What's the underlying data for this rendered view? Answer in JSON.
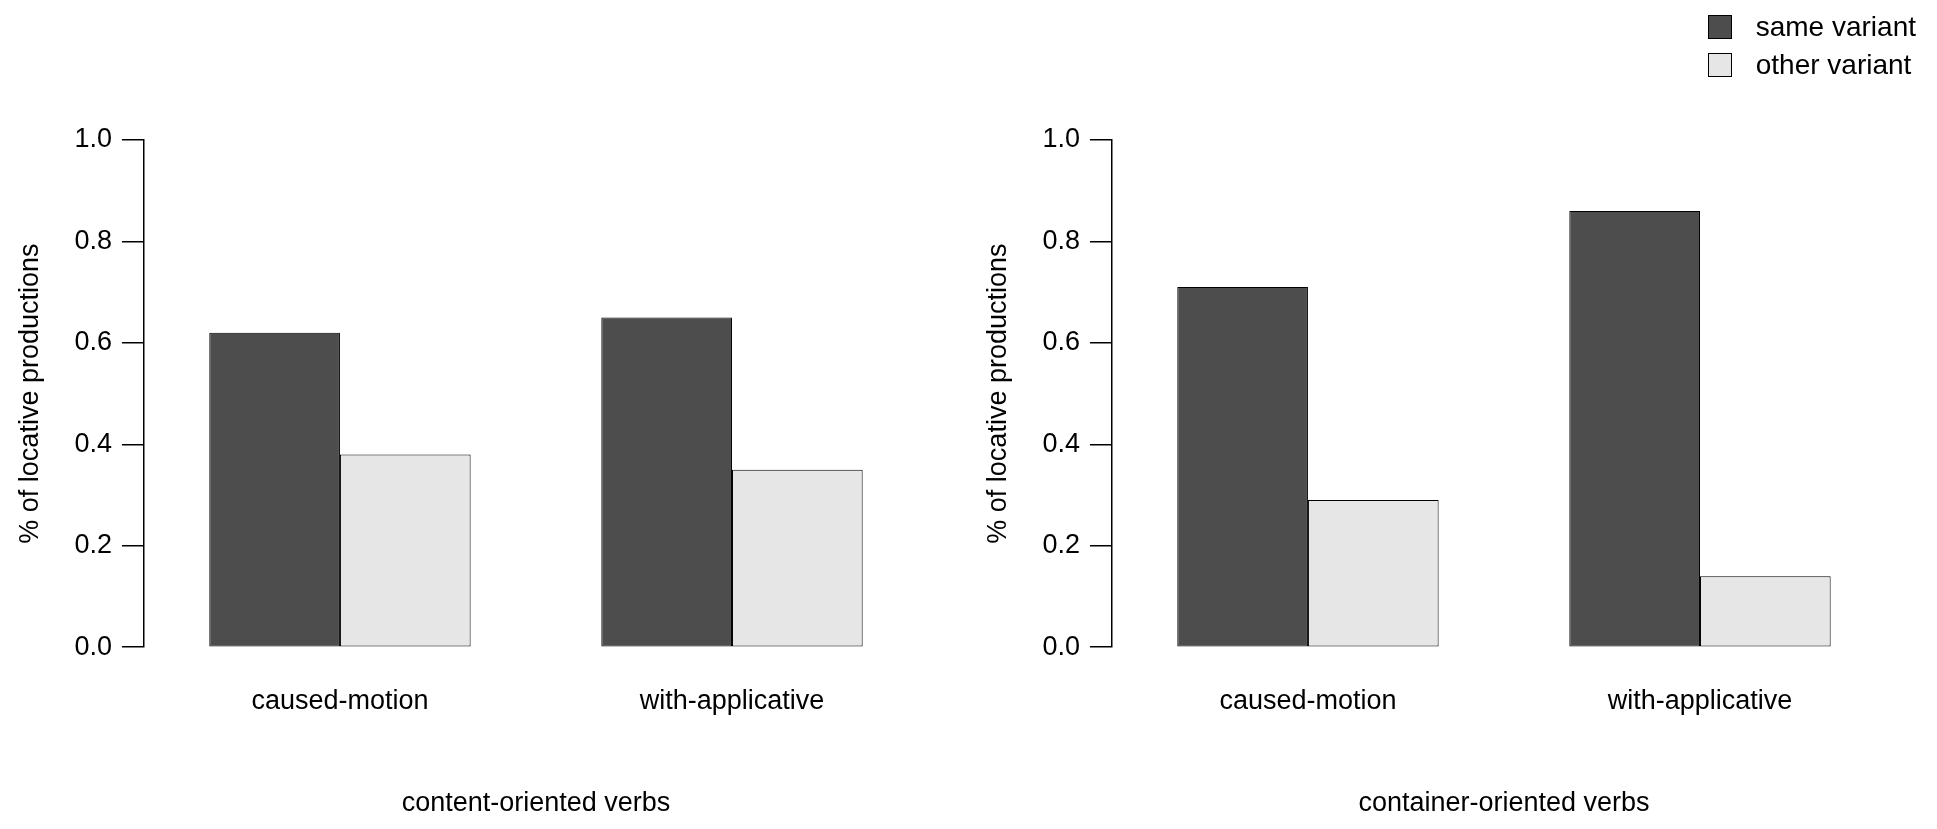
{
  "chart_data": [
    {
      "type": "bar",
      "xlabel": "content-oriented verbs",
      "ylabel": "% of locative productions",
      "categories": [
        "caused-motion",
        "with-applicative"
      ],
      "series": [
        {
          "color": "#4d4d4d",
          "values": [
            0.62,
            0.65
          ]
        },
        {
          "color": "#e6e6e6",
          "values": [
            0.38,
            0.35
          ]
        }
      ],
      "ylim": [
        0,
        1
      ],
      "yticks": [
        {
          "value": 0,
          "label": "0.0"
        },
        {
          "value": 0.2,
          "label": "0.2"
        },
        {
          "value": 0.4,
          "label": "0.4"
        },
        {
          "value": 0.6,
          "label": "0.6"
        },
        {
          "value": 0.8,
          "label": "0.8"
        },
        {
          "value": 1,
          "label": "1.0"
        }
      ],
      "grid": false,
      "legend": false
    },
    {
      "type": "bar",
      "xlabel": "container-oriented verbs",
      "ylabel": "% of locative productions",
      "categories": [
        "caused-motion",
        "with-applicative"
      ],
      "series": [
        {
          "name": "same variant",
          "color": "#4d4d4d",
          "values": [
            0.71,
            0.86
          ]
        },
        {
          "name": "other variant",
          "color": "#e6e6e6",
          "values": [
            0.29,
            0.14
          ]
        }
      ],
      "ylim": [
        0,
        1
      ],
      "yticks": [
        {
          "value": 0,
          "label": "0.0"
        },
        {
          "value": 0.2,
          "label": "0.2"
        },
        {
          "value": 0.4,
          "label": "0.4"
        },
        {
          "value": 0.6,
          "label": "0.6"
        },
        {
          "value": 0.8,
          "label": "0.8"
        },
        {
          "value": 1,
          "label": "1.0"
        }
      ],
      "grid": false,
      "legend": "top right"
    }
  ]
}
